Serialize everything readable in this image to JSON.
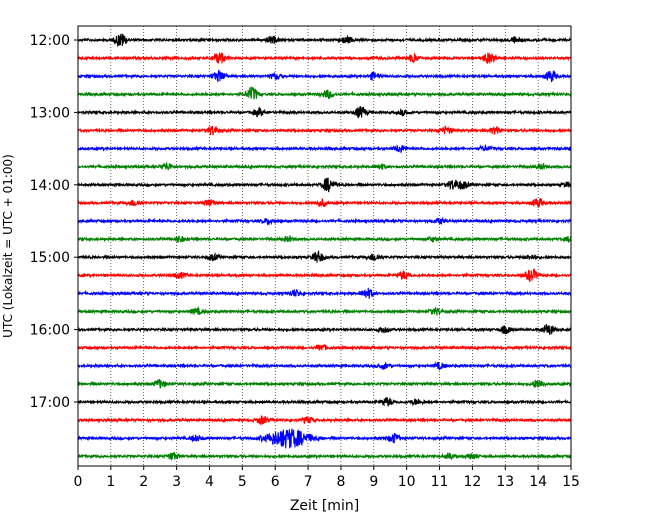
{
  "chart_data": {
    "type": "line",
    "xlabel": "Zeit  [min]",
    "ylabel": "UTC (Lokalzeit = UTC + 01:00)",
    "x_ticks": [
      "0",
      "1",
      "2",
      "3",
      "4",
      "5",
      "6",
      "7",
      "8",
      "9",
      "10",
      "11",
      "12",
      "13",
      "14",
      "15"
    ],
    "xlim": [
      0,
      15
    ],
    "y_tick_labels": [
      "12:00",
      "13:00",
      "14:00",
      "15:00",
      "16:00",
      "17:00"
    ],
    "grid": "vertical dotted lines at each minute",
    "trace_interval_min": 15,
    "trace_colors": [
      "#000000",
      "#ff0000",
      "#0000ff",
      "#008000"
    ],
    "traces": [
      {
        "start": "12:00",
        "events": [
          [
            1.3,
            1.2
          ],
          [
            5.9,
            0.6
          ],
          [
            8.2,
            0.5
          ],
          [
            13.3,
            0.5
          ]
        ]
      },
      {
        "start": "12:15",
        "events": [
          [
            4.3,
            1.0
          ],
          [
            10.2,
            0.6
          ],
          [
            12.5,
            0.9
          ]
        ]
      },
      {
        "start": "12:30",
        "events": [
          [
            4.3,
            1.0
          ],
          [
            6.0,
            0.5
          ],
          [
            9.0,
            0.6
          ],
          [
            14.4,
            1.0
          ]
        ]
      },
      {
        "start": "12:45",
        "events": [
          [
            5.3,
            1.2
          ],
          [
            7.6,
            0.7
          ]
        ]
      },
      {
        "start": "13:00",
        "events": [
          [
            5.5,
            0.6
          ],
          [
            8.6,
            1.0
          ],
          [
            9.9,
            0.4
          ]
        ]
      },
      {
        "start": "13:15",
        "events": [
          [
            4.1,
            0.8
          ],
          [
            11.2,
            0.6
          ],
          [
            12.7,
            0.6
          ]
        ]
      },
      {
        "start": "13:30",
        "events": [
          [
            9.8,
            0.6
          ],
          [
            12.4,
            0.4
          ]
        ]
      },
      {
        "start": "13:45",
        "events": [
          [
            2.7,
            0.6
          ],
          [
            9.2,
            0.4
          ],
          [
            14.1,
            0.4
          ]
        ]
      },
      {
        "start": "14:00",
        "events": [
          [
            7.6,
            1.2
          ],
          [
            11.4,
            0.8
          ],
          [
            11.7,
            0.7
          ],
          [
            14.9,
            0.4
          ]
        ]
      },
      {
        "start": "14:15",
        "events": [
          [
            1.7,
            0.5
          ],
          [
            4.0,
            0.6
          ],
          [
            7.4,
            0.6
          ],
          [
            14.0,
            0.8
          ]
        ]
      },
      {
        "start": "14:30",
        "events": [
          [
            5.8,
            0.5
          ],
          [
            11.0,
            0.4
          ]
        ]
      },
      {
        "start": "14:45",
        "events": [
          [
            3.1,
            0.5
          ],
          [
            6.4,
            0.4
          ],
          [
            10.8,
            0.4
          ],
          [
            15.0,
            0.5
          ]
        ]
      },
      {
        "start": "15:00",
        "events": [
          [
            4.1,
            0.5
          ],
          [
            7.3,
            1.0
          ],
          [
            9.0,
            0.6
          ],
          [
            13.8,
            0.4
          ]
        ]
      },
      {
        "start": "15:15",
        "events": [
          [
            3.1,
            0.5
          ],
          [
            9.9,
            0.7
          ],
          [
            13.8,
            1.1
          ]
        ]
      },
      {
        "start": "15:30",
        "events": [
          [
            6.6,
            0.6
          ],
          [
            8.8,
            0.9
          ]
        ]
      },
      {
        "start": "15:45",
        "events": [
          [
            3.6,
            0.5
          ],
          [
            10.9,
            0.6
          ]
        ]
      },
      {
        "start": "16:00",
        "events": [
          [
            9.3,
            0.5
          ],
          [
            13.0,
            0.6
          ],
          [
            14.3,
            1.0
          ]
        ]
      },
      {
        "start": "16:15",
        "events": [
          [
            7.4,
            0.5
          ]
        ]
      },
      {
        "start": "16:30",
        "events": [
          [
            9.3,
            0.5
          ],
          [
            11.0,
            0.5
          ]
        ]
      },
      {
        "start": "16:45",
        "events": [
          [
            2.5,
            0.7
          ],
          [
            14.0,
            0.8
          ]
        ]
      },
      {
        "start": "17:00",
        "events": [
          [
            9.4,
            0.7
          ],
          [
            10.3,
            0.5
          ]
        ]
      },
      {
        "start": "17:15",
        "events": [
          [
            5.6,
            0.7
          ],
          [
            7.0,
            0.5
          ]
        ]
      },
      {
        "start": "17:30",
        "events": [
          [
            6.4,
            1.7
          ],
          [
            9.6,
            0.8
          ],
          [
            3.6,
            0.5
          ]
        ]
      },
      {
        "start": "17:45",
        "events": [
          [
            2.9,
            0.6
          ],
          [
            11.3,
            0.5
          ],
          [
            12.0,
            0.4
          ]
        ]
      }
    ]
  }
}
